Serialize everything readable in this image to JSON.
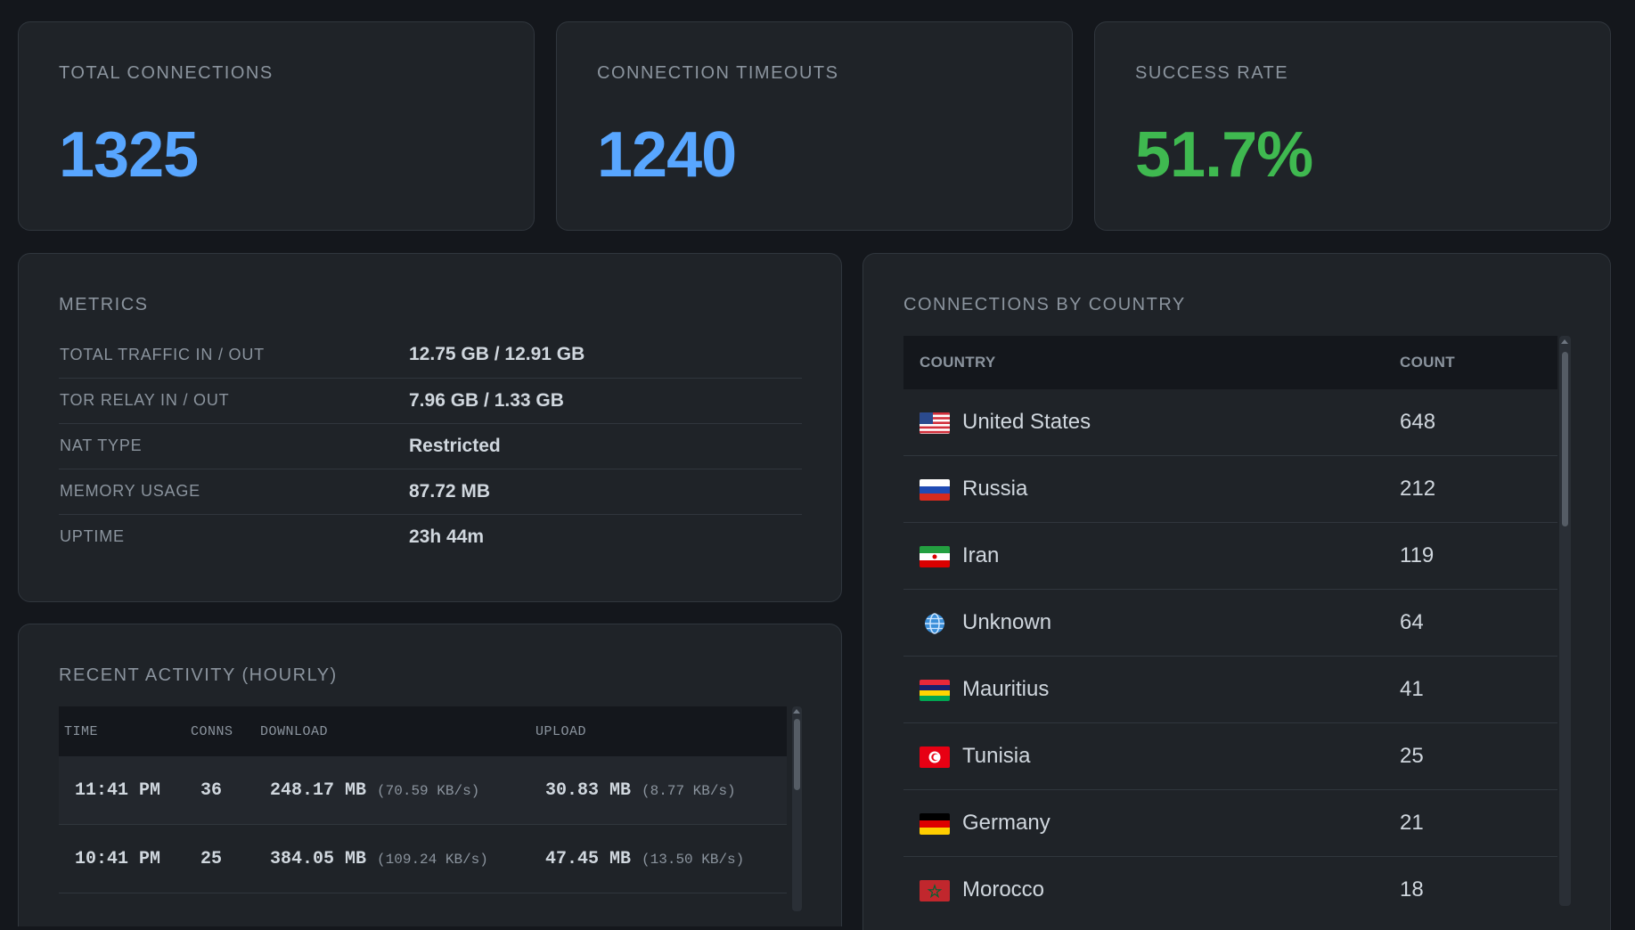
{
  "stats": {
    "total_connections": {
      "label": "TOTAL CONNECTIONS",
      "value": "1325"
    },
    "timeouts": {
      "label": "CONNECTION TIMEOUTS",
      "value": "1240"
    },
    "success_rate": {
      "label": "SUCCESS RATE",
      "value": "51.7%"
    }
  },
  "metrics": {
    "title": "METRICS",
    "rows": [
      {
        "label": "TOTAL TRAFFIC IN / OUT",
        "value": "12.75 GB / 12.91 GB"
      },
      {
        "label": "TOR RELAY IN / OUT",
        "value": "7.96 GB / 1.33 GB"
      },
      {
        "label": "NAT TYPE",
        "value": "Restricted"
      },
      {
        "label": "MEMORY USAGE",
        "value": "87.72 MB"
      },
      {
        "label": "UPTIME",
        "value": "23h 44m"
      }
    ]
  },
  "activity": {
    "title": "RECENT ACTIVITY (HOURLY)",
    "headers": {
      "time": "TIME",
      "conns": "CONNS",
      "download": "DOWNLOAD",
      "upload": "UPLOAD"
    },
    "rows": [
      {
        "time": "11:41 PM",
        "conns": "36",
        "download": "248.17 MB",
        "download_rate": "(70.59 KB/s)",
        "upload": "30.83 MB",
        "upload_rate": "(8.77 KB/s)"
      },
      {
        "time": "10:41 PM",
        "conns": "25",
        "download": "384.05 MB",
        "download_rate": "(109.24 KB/s)",
        "upload": "47.45 MB",
        "upload_rate": "(13.50 KB/s)"
      }
    ]
  },
  "countries": {
    "title": "CONNECTIONS BY COUNTRY",
    "headers": {
      "country": "COUNTRY",
      "count": "COUNT"
    },
    "rows": [
      {
        "name": "United States",
        "count": "648",
        "flag": "us-flag-icon"
      },
      {
        "name": "Russia",
        "count": "212",
        "flag": "ru-flag-icon"
      },
      {
        "name": "Iran",
        "count": "119",
        "flag": "ir-flag-icon"
      },
      {
        "name": "Unknown",
        "count": "64",
        "flag": "globe-icon"
      },
      {
        "name": "Mauritius",
        "count": "41",
        "flag": "mu-flag-icon"
      },
      {
        "name": "Tunisia",
        "count": "25",
        "flag": "tn-flag-icon"
      },
      {
        "name": "Germany",
        "count": "21",
        "flag": "de-flag-icon"
      },
      {
        "name": "Morocco",
        "count": "18",
        "flag": "ma-flag-icon"
      }
    ]
  },
  "colors": {
    "accent_blue": "#58a6ff",
    "accent_green": "#3fb950",
    "card_bg": "#1f2328",
    "page_bg": "#14171c"
  }
}
